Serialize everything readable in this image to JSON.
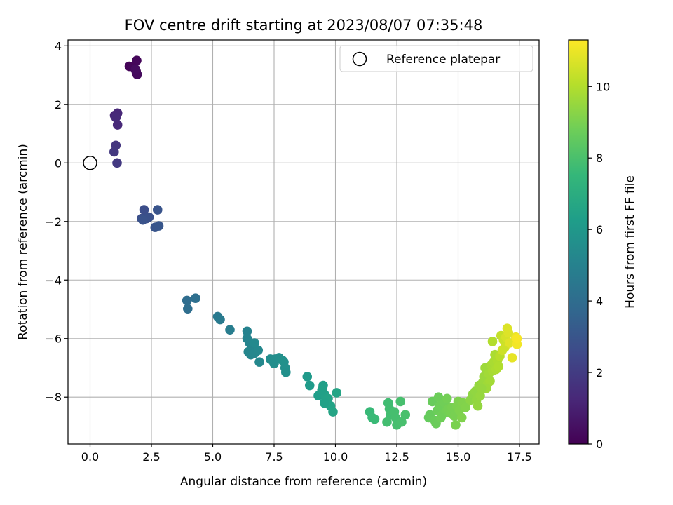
{
  "chart_data": {
    "type": "scatter",
    "title": "FOV centre drift starting at 2023/08/07 07:35:48",
    "xlabel": "Angular distance from reference (arcmin)",
    "ylabel": "Rotation from reference (arcmin)",
    "xlim": [
      -0.9,
      18.3
    ],
    "ylim": [
      -9.6,
      4.2
    ],
    "xticks": [
      0.0,
      2.5,
      5.0,
      7.5,
      10.0,
      12.5,
      15.0,
      17.5
    ],
    "xtick_labels": [
      "0.0",
      "2.5",
      "5.0",
      "7.5",
      "10.0",
      "12.5",
      "15.0",
      "17.5"
    ],
    "yticks": [
      -8,
      -6,
      -4,
      -2,
      0,
      2,
      4
    ],
    "ytick_labels": [
      "−8",
      "−6",
      "−4",
      "−2",
      "0",
      "2",
      "4"
    ],
    "grid": true,
    "legend": {
      "placement": "upper right",
      "entries": [
        "Reference platepar"
      ]
    },
    "reference_point": {
      "x": 0.0,
      "y": 0.0,
      "label": "Reference platepar"
    },
    "colorbar": {
      "label": "Hours from first FF file",
      "range": [
        0,
        11.3
      ],
      "ticks": [
        0,
        2,
        4,
        6,
        8,
        10
      ],
      "tick_labels": [
        "0",
        "2",
        "4",
        "6",
        "8",
        "10"
      ],
      "colormap": "viridis"
    },
    "colormap_stops": [
      "#440154",
      "#482878",
      "#3e4989",
      "#31688e",
      "#26828e",
      "#1f9e89",
      "#35b779",
      "#6ece58",
      "#b5de2b",
      "#fde725"
    ],
    "points": [
      {
        "x": 1.6,
        "y": 3.3,
        "h": 0.1
      },
      {
        "x": 1.75,
        "y": 3.28,
        "h": 0.15
      },
      {
        "x": 1.9,
        "y": 3.5,
        "h": 0.2
      },
      {
        "x": 1.88,
        "y": 3.12,
        "h": 0.25
      },
      {
        "x": 1.92,
        "y": 3.02,
        "h": 0.3
      },
      {
        "x": 1.85,
        "y": 3.2,
        "h": 0.35
      },
      {
        "x": 1.0,
        "y": 1.62,
        "h": 1.2
      },
      {
        "x": 1.12,
        "y": 1.7,
        "h": 1.25
      },
      {
        "x": 1.12,
        "y": 1.3,
        "h": 1.3
      },
      {
        "x": 1.05,
        "y": 1.55,
        "h": 1.35
      },
      {
        "x": 1.05,
        "y": 0.6,
        "h": 1.8
      },
      {
        "x": 0.98,
        "y": 0.38,
        "h": 1.85
      },
      {
        "x": 1.1,
        "y": 0.0,
        "h": 1.9
      },
      {
        "x": 2.2,
        "y": -1.6,
        "h": 2.7
      },
      {
        "x": 2.1,
        "y": -1.9,
        "h": 2.75
      },
      {
        "x": 2.3,
        "y": -1.9,
        "h": 2.8
      },
      {
        "x": 2.4,
        "y": -1.85,
        "h": 2.85
      },
      {
        "x": 2.15,
        "y": -1.95,
        "h": 2.9
      },
      {
        "x": 2.75,
        "y": -1.6,
        "h": 2.95
      },
      {
        "x": 2.65,
        "y": -2.2,
        "h": 3.0
      },
      {
        "x": 2.8,
        "y": -2.15,
        "h": 3.05
      },
      {
        "x": 3.95,
        "y": -4.7,
        "h": 4.0
      },
      {
        "x": 3.98,
        "y": -4.98,
        "h": 4.05
      },
      {
        "x": 4.3,
        "y": -4.62,
        "h": 4.1
      },
      {
        "x": 5.2,
        "y": -5.25,
        "h": 4.6
      },
      {
        "x": 5.3,
        "y": -5.35,
        "h": 4.65
      },
      {
        "x": 5.7,
        "y": -5.7,
        "h": 4.8
      },
      {
        "x": 6.4,
        "y": -5.75,
        "h": 5.0
      },
      {
        "x": 6.4,
        "y": -6.0,
        "h": 5.05
      },
      {
        "x": 6.5,
        "y": -6.15,
        "h": 5.1
      },
      {
        "x": 6.6,
        "y": -6.3,
        "h": 5.15
      },
      {
        "x": 6.45,
        "y": -6.45,
        "h": 5.2
      },
      {
        "x": 6.55,
        "y": -6.55,
        "h": 5.22
      },
      {
        "x": 6.7,
        "y": -6.5,
        "h": 5.25
      },
      {
        "x": 6.85,
        "y": -6.4,
        "h": 5.28
      },
      {
        "x": 6.9,
        "y": -6.8,
        "h": 5.3
      },
      {
        "x": 6.7,
        "y": -6.15,
        "h": 5.35
      },
      {
        "x": 7.35,
        "y": -6.7,
        "h": 5.5
      },
      {
        "x": 7.45,
        "y": -6.75,
        "h": 5.52
      },
      {
        "x": 7.55,
        "y": -6.7,
        "h": 5.55
      },
      {
        "x": 7.5,
        "y": -6.85,
        "h": 5.57
      },
      {
        "x": 7.7,
        "y": -6.65,
        "h": 5.6
      },
      {
        "x": 7.9,
        "y": -6.8,
        "h": 5.62
      },
      {
        "x": 7.95,
        "y": -7.0,
        "h": 5.65
      },
      {
        "x": 7.98,
        "y": -7.15,
        "h": 5.67
      },
      {
        "x": 7.85,
        "y": -6.75,
        "h": 5.68
      },
      {
        "x": 8.85,
        "y": -7.3,
        "h": 6.1
      },
      {
        "x": 8.95,
        "y": -7.6,
        "h": 6.15
      },
      {
        "x": 9.3,
        "y": -7.95,
        "h": 6.3
      },
      {
        "x": 9.5,
        "y": -7.6,
        "h": 6.35
      },
      {
        "x": 9.55,
        "y": -7.9,
        "h": 6.4
      },
      {
        "x": 9.6,
        "y": -8.0,
        "h": 6.45
      },
      {
        "x": 9.7,
        "y": -8.05,
        "h": 6.5
      },
      {
        "x": 9.8,
        "y": -8.3,
        "h": 6.55
      },
      {
        "x": 9.9,
        "y": -8.5,
        "h": 6.6
      },
      {
        "x": 9.45,
        "y": -7.75,
        "h": 6.4
      },
      {
        "x": 9.55,
        "y": -8.2,
        "h": 6.45
      },
      {
        "x": 10.05,
        "y": -7.85,
        "h": 6.6
      },
      {
        "x": 11.4,
        "y": -8.5,
        "h": 7.6
      },
      {
        "x": 11.5,
        "y": -8.7,
        "h": 7.62
      },
      {
        "x": 11.6,
        "y": -8.75,
        "h": 7.65
      },
      {
        "x": 12.15,
        "y": -8.2,
        "h": 7.8
      },
      {
        "x": 12.2,
        "y": -8.4,
        "h": 7.82
      },
      {
        "x": 12.25,
        "y": -8.6,
        "h": 7.85
      },
      {
        "x": 12.1,
        "y": -8.85,
        "h": 7.87
      },
      {
        "x": 12.45,
        "y": -8.7,
        "h": 7.9
      },
      {
        "x": 12.5,
        "y": -8.95,
        "h": 7.92
      },
      {
        "x": 12.65,
        "y": -8.15,
        "h": 7.95
      },
      {
        "x": 12.7,
        "y": -8.85,
        "h": 7.97
      },
      {
        "x": 12.85,
        "y": -8.6,
        "h": 8.0
      },
      {
        "x": 12.4,
        "y": -8.5,
        "h": 7.9
      },
      {
        "x": 13.8,
        "y": -8.7,
        "h": 8.6
      },
      {
        "x": 13.85,
        "y": -8.6,
        "h": 8.62
      },
      {
        "x": 13.95,
        "y": -8.15,
        "h": 8.65
      },
      {
        "x": 14.05,
        "y": -8.8,
        "h": 8.67
      },
      {
        "x": 14.1,
        "y": -8.9,
        "h": 8.7
      },
      {
        "x": 14.15,
        "y": -8.45,
        "h": 8.72
      },
      {
        "x": 14.2,
        "y": -8.0,
        "h": 8.75
      },
      {
        "x": 14.25,
        "y": -8.3,
        "h": 8.77
      },
      {
        "x": 14.35,
        "y": -8.6,
        "h": 8.8
      },
      {
        "x": 14.45,
        "y": -8.2,
        "h": 8.82
      },
      {
        "x": 14.5,
        "y": -8.5,
        "h": 8.85
      },
      {
        "x": 14.55,
        "y": -8.05,
        "h": 8.87
      },
      {
        "x": 14.6,
        "y": -8.4,
        "h": 8.9
      },
      {
        "x": 14.7,
        "y": -8.55,
        "h": 8.92
      },
      {
        "x": 14.75,
        "y": -8.35,
        "h": 8.95
      },
      {
        "x": 14.85,
        "y": -8.65,
        "h": 8.97
      },
      {
        "x": 14.9,
        "y": -8.95,
        "h": 9.0
      },
      {
        "x": 14.95,
        "y": -8.3,
        "h": 9.02
      },
      {
        "x": 15.0,
        "y": -8.15,
        "h": 9.05
      },
      {
        "x": 15.05,
        "y": -8.45,
        "h": 9.07
      },
      {
        "x": 15.15,
        "y": -8.7,
        "h": 9.1
      },
      {
        "x": 15.2,
        "y": -8.2,
        "h": 9.12
      },
      {
        "x": 15.3,
        "y": -8.35,
        "h": 9.15
      },
      {
        "x": 14.3,
        "y": -8.7,
        "h": 8.78
      },
      {
        "x": 15.5,
        "y": -8.1,
        "h": 9.3
      },
      {
        "x": 15.6,
        "y": -7.9,
        "h": 9.35
      },
      {
        "x": 15.7,
        "y": -7.8,
        "h": 9.4
      },
      {
        "x": 15.75,
        "y": -8.1,
        "h": 9.42
      },
      {
        "x": 15.8,
        "y": -8.3,
        "h": 9.45
      },
      {
        "x": 15.85,
        "y": -7.6,
        "h": 9.48
      },
      {
        "x": 15.9,
        "y": -7.95,
        "h": 9.5
      },
      {
        "x": 16.0,
        "y": -7.5,
        "h": 9.55
      },
      {
        "x": 16.05,
        "y": -7.3,
        "h": 9.58
      },
      {
        "x": 16.1,
        "y": -7.0,
        "h": 9.62
      },
      {
        "x": 16.2,
        "y": -7.55,
        "h": 9.66
      },
      {
        "x": 16.25,
        "y": -7.2,
        "h": 9.7
      },
      {
        "x": 16.3,
        "y": -7.45,
        "h": 9.73
      },
      {
        "x": 16.35,
        "y": -6.9,
        "h": 9.76
      },
      {
        "x": 16.4,
        "y": -7.1,
        "h": 9.8
      },
      {
        "x": 16.45,
        "y": -6.8,
        "h": 9.83
      },
      {
        "x": 16.5,
        "y": -6.55,
        "h": 9.86
      },
      {
        "x": 16.55,
        "y": -7.05,
        "h": 9.89
      },
      {
        "x": 16.6,
        "y": -6.75,
        "h": 9.92
      },
      {
        "x": 16.65,
        "y": -6.95,
        "h": 9.95
      },
      {
        "x": 16.4,
        "y": -6.1,
        "h": 10.0
      },
      {
        "x": 16.7,
        "y": -6.6,
        "h": 10.1
      },
      {
        "x": 16.75,
        "y": -5.9,
        "h": 10.3
      },
      {
        "x": 16.85,
        "y": -6.05,
        "h": 10.4
      },
      {
        "x": 16.9,
        "y": -6.3,
        "h": 10.5
      },
      {
        "x": 16.95,
        "y": -5.95,
        "h": 10.6
      },
      {
        "x": 17.0,
        "y": -5.65,
        "h": 10.7
      },
      {
        "x": 17.1,
        "y": -6.15,
        "h": 10.8
      },
      {
        "x": 17.2,
        "y": -6.65,
        "h": 10.9
      },
      {
        "x": 17.35,
        "y": -5.95,
        "h": 11.0
      },
      {
        "x": 17.4,
        "y": -6.2,
        "h": 11.1
      },
      {
        "x": 17.4,
        "y": -6.0,
        "h": 11.2
      },
      {
        "x": 16.8,
        "y": -6.4,
        "h": 10.45
      },
      {
        "x": 17.05,
        "y": -5.8,
        "h": 10.75
      },
      {
        "x": 16.15,
        "y": -7.7,
        "h": 9.64
      },
      {
        "x": 15.95,
        "y": -7.7,
        "h": 9.52
      }
    ]
  }
}
